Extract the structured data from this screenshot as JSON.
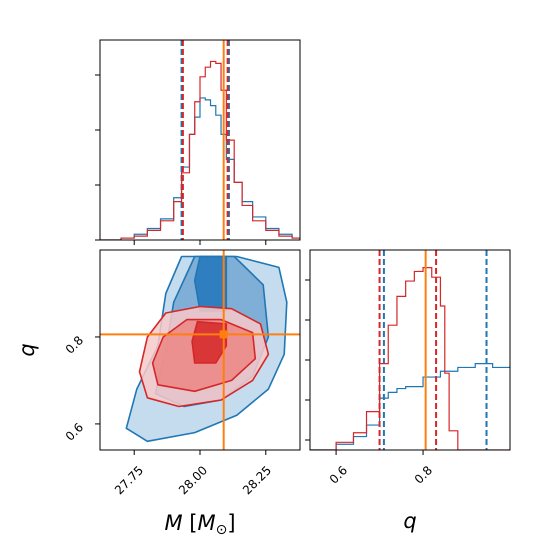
{
  "chart_data": [
    {
      "panel": "M marginal",
      "type": "histogram",
      "xlim": [
        27.62,
        28.38
      ],
      "x_ticks": [
        27.75,
        28.0,
        28.25
      ],
      "truth": 28.09,
      "series": [
        {
          "color": "#1f77b4",
          "x": [
            27.62,
            27.7,
            27.75,
            27.8,
            27.85,
            27.9,
            27.93,
            27.96,
            27.98,
            28.0,
            28.02,
            28.04,
            28.06,
            28.08,
            28.1,
            28.13,
            28.16,
            28.2,
            28.25,
            28.3,
            28.35,
            28.38
          ],
          "density": [
            0.0,
            0.01,
            0.03,
            0.06,
            0.11,
            0.22,
            0.38,
            0.55,
            0.64,
            0.74,
            0.73,
            0.7,
            0.65,
            0.55,
            0.42,
            0.3,
            0.2,
            0.12,
            0.06,
            0.03,
            0.01,
            0.0
          ],
          "quantile_lines": [
            27.93,
            28.11
          ]
        },
        {
          "color": "#d62728",
          "x": [
            27.62,
            27.7,
            27.75,
            27.8,
            27.85,
            27.9,
            27.93,
            27.96,
            27.98,
            28.0,
            28.02,
            28.04,
            28.06,
            28.08,
            28.1,
            28.13,
            28.16,
            28.2,
            28.25,
            28.3,
            28.35,
            28.38
          ],
          "density": [
            0.0,
            0.01,
            0.02,
            0.05,
            0.1,
            0.2,
            0.35,
            0.55,
            0.72,
            0.85,
            0.9,
            0.93,
            0.92,
            0.78,
            0.52,
            0.3,
            0.18,
            0.1,
            0.05,
            0.02,
            0.01,
            0.0
          ],
          "quantile_lines": [
            27.935,
            28.105
          ]
        }
      ]
    },
    {
      "panel": "q marginal",
      "type": "histogram",
      "xlim": [
        0.54,
        1.0
      ],
      "x_ticks": [
        0.6,
        0.8
      ],
      "truth": 0.806,
      "series": [
        {
          "color": "#1f77b4",
          "x": [
            0.54,
            0.6,
            0.64,
            0.67,
            0.7,
            0.72,
            0.74,
            0.76,
            0.8,
            0.84,
            0.88,
            0.92,
            0.96,
            1.0
          ],
          "density": [
            0.0,
            0.03,
            0.07,
            0.13,
            0.27,
            0.3,
            0.32,
            0.33,
            0.38,
            0.41,
            0.43,
            0.45,
            0.43,
            0.44
          ],
          "quantile_lines": [
            0.71,
            0.946
          ]
        },
        {
          "color": "#d62728",
          "x": [
            0.54,
            0.6,
            0.64,
            0.67,
            0.7,
            0.72,
            0.74,
            0.76,
            0.78,
            0.8,
            0.82,
            0.84,
            0.85,
            0.86,
            0.88,
            1.0
          ],
          "density": [
            0.0,
            0.04,
            0.09,
            0.2,
            0.45,
            0.65,
            0.8,
            0.88,
            0.93,
            0.95,
            0.9,
            0.75,
            0.4,
            0.1,
            0.0,
            0.0
          ],
          "quantile_lines": [
            0.7,
            0.83
          ]
        }
      ]
    },
    {
      "panel": "M-q joint",
      "type": "contour",
      "xlim": [
        27.62,
        28.38
      ],
      "ylim": [
        0.54,
        1.0
      ],
      "x_ticks": [
        27.75,
        28.0,
        28.25
      ],
      "y_ticks": [
        0.6,
        0.8
      ],
      "truth": {
        "x": 28.09,
        "y": 0.806
      },
      "series": [
        {
          "color": "#1f77b4",
          "levels": [
            {
              "fill": "#c5dcee",
              "points": [
                [
                  27.93,
                  0.985
                ],
                [
                  28.14,
                  0.985
                ],
                [
                  28.3,
                  0.96
                ],
                [
                  28.33,
                  0.88
                ],
                [
                  28.32,
                  0.76
                ],
                [
                  28.26,
                  0.68
                ],
                [
                  28.14,
                  0.62
                ],
                [
                  27.98,
                  0.58
                ],
                [
                  27.8,
                  0.56
                ],
                [
                  27.72,
                  0.59
                ],
                [
                  27.76,
                  0.68
                ],
                [
                  27.84,
                  0.78
                ],
                [
                  27.87,
                  0.9
                ]
              ]
            },
            {
              "fill": "#7faed6",
              "points": [
                [
                  27.98,
                  0.985
                ],
                [
                  28.13,
                  0.985
                ],
                [
                  28.24,
                  0.92
                ],
                [
                  28.26,
                  0.8
                ],
                [
                  28.2,
                  0.71
                ],
                [
                  28.08,
                  0.655
                ],
                [
                  27.94,
                  0.64
                ],
                [
                  27.83,
                  0.67
                ],
                [
                  27.87,
                  0.77
                ],
                [
                  27.9,
                  0.88
                ]
              ]
            },
            {
              "fill": "#2f7fc0",
              "points": [
                [
                  28.0,
                  0.985
                ],
                [
                  28.1,
                  0.985
                ],
                [
                  28.1,
                  0.9
                ],
                [
                  28.1,
                  0.86
                ],
                [
                  28.0,
                  0.86
                ],
                [
                  27.98,
                  0.93
                ]
              ]
            }
          ]
        },
        {
          "color": "#d62728",
          "levels": [
            {
              "fill": "#f7c9c9",
              "points": [
                [
                  27.87,
                  0.855
                ],
                [
                  28.0,
                  0.87
                ],
                [
                  28.12,
                  0.865
                ],
                [
                  28.23,
                  0.83
                ],
                [
                  28.26,
                  0.76
                ],
                [
                  28.2,
                  0.7
                ],
                [
                  28.08,
                  0.655
                ],
                [
                  27.92,
                  0.64
                ],
                [
                  27.8,
                  0.66
                ],
                [
                  27.77,
                  0.72
                ],
                [
                  27.8,
                  0.8
                ]
              ]
            },
            {
              "fill": "#ec8585",
              "points": [
                [
                  27.95,
                  0.84
                ],
                [
                  28.08,
                  0.84
                ],
                [
                  28.2,
                  0.81
                ],
                [
                  28.21,
                  0.75
                ],
                [
                  28.12,
                  0.7
                ],
                [
                  27.98,
                  0.675
                ],
                [
                  27.84,
                  0.69
                ],
                [
                  27.82,
                  0.74
                ],
                [
                  27.86,
                  0.8
                ]
              ]
            },
            {
              "fill": "#d62728",
              "points": [
                [
                  27.99,
                  0.835
                ],
                [
                  28.1,
                  0.83
                ],
                [
                  28.1,
                  0.78
                ],
                [
                  28.06,
                  0.74
                ],
                [
                  27.98,
                  0.74
                ],
                [
                  27.97,
                  0.79
                ]
              ]
            }
          ]
        }
      ]
    }
  ],
  "labels": {
    "x_left_var": "M",
    "x_left_unit_open": " [",
    "x_left_unit_sym": "M",
    "x_left_unit_sub": "⊙",
    "x_left_unit_close": "]",
    "x_right": "q",
    "y_left": "q"
  },
  "ticks": {
    "m_x": [
      "27.75",
      "28.00",
      "28.25"
    ],
    "q_y": [
      "0.6",
      "0.8"
    ],
    "q_x": [
      "0.6",
      "0.8"
    ]
  },
  "colors": {
    "blue": "#1f77b4",
    "red": "#d62728",
    "truth": "#ff7f0e"
  }
}
